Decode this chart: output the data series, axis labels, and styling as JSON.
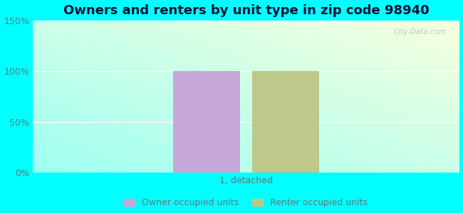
{
  "title": "Owners and renters by unit type in zip code 98940",
  "categories": [
    "1, detached"
  ],
  "owner_values": [
    100
  ],
  "renter_values": [
    100
  ],
  "owner_color": "#c8a8d8",
  "renter_color": "#bec88a",
  "ylabel_ticks": [
    "0%",
    "50%",
    "100%",
    "150%"
  ],
  "ytick_values": [
    0,
    50,
    100,
    150
  ],
  "ylim": [
    0,
    150
  ],
  "legend_owner": "Owner occupied units",
  "legend_renter": "Renter occupied units",
  "watermark": "City-Data.com",
  "title_fontsize": 13,
  "tick_fontsize": 9,
  "legend_fontsize": 9,
  "xlabel_fontsize": 9,
  "bar_width": 0.22,
  "figure_bg": "#00ffff",
  "tick_color": "#5a7a7a",
  "title_color": "#111133"
}
